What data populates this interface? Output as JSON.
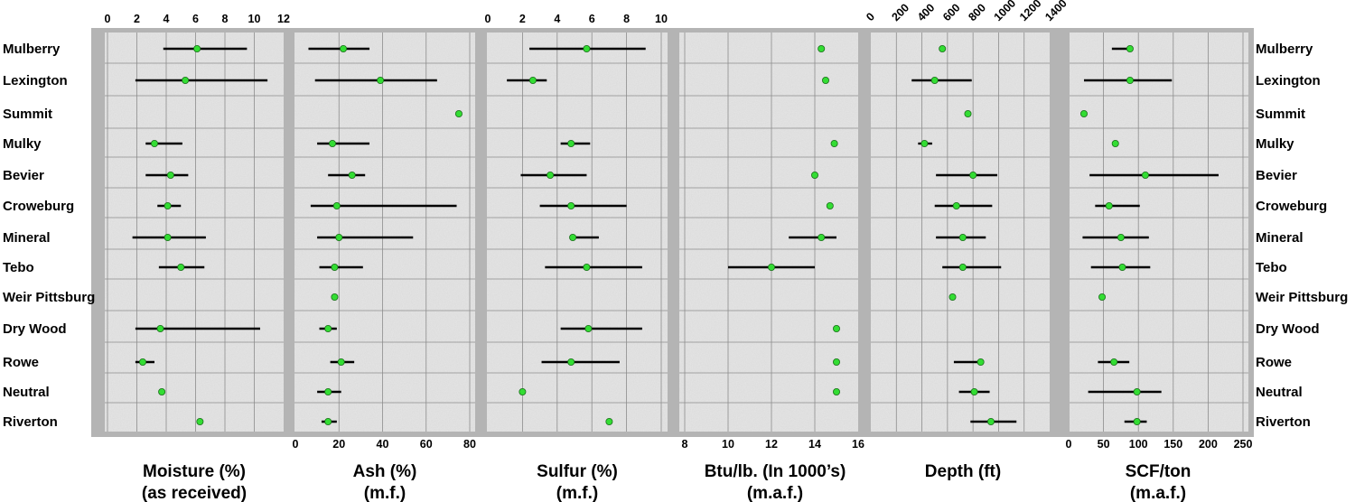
{
  "chart_data": {
    "type": "range-dot",
    "coals": [
      "Mulberry",
      "Lexington",
      "Summit",
      "Mulky",
      "Bevier",
      "Croweburg",
      "Mineral",
      "Tebo",
      "Weir Pittsburg",
      "Dry Wood",
      "Rowe",
      "Neutral",
      "Riverton"
    ],
    "panels": [
      {
        "key": "moisture",
        "title": [
          "Moisture (%)",
          "(as received)"
        ],
        "axis": {
          "min": 0,
          "max": 12,
          "ticks": [
            0,
            2,
            4,
            6,
            8,
            10,
            12
          ],
          "position": "top"
        },
        "mean": [
          6.1,
          5.3,
          null,
          3.2,
          4.3,
          4.1,
          4.1,
          5.0,
          null,
          3.6,
          2.4,
          3.7,
          6.3
        ],
        "min": [
          3.8,
          1.9,
          null,
          2.6,
          2.6,
          3.4,
          1.7,
          3.5,
          null,
          1.9,
          1.9,
          null,
          null
        ],
        "max": [
          9.5,
          10.9,
          null,
          5.1,
          5.5,
          5.0,
          6.7,
          6.6,
          null,
          10.4,
          3.2,
          null,
          null
        ]
      },
      {
        "key": "ash",
        "title": [
          "Ash (%)",
          "(m.f.)"
        ],
        "axis": {
          "min": 0,
          "max": 80,
          "ticks": [
            0,
            20,
            40,
            60,
            80
          ],
          "position": "bottom"
        },
        "mean": [
          22,
          39,
          75,
          17,
          26,
          19,
          20,
          18,
          18,
          15,
          21,
          15,
          15
        ],
        "min": [
          6,
          9,
          null,
          10,
          15,
          7,
          10,
          11,
          null,
          11,
          16,
          10,
          12
        ],
        "max": [
          34,
          65,
          null,
          34,
          32,
          74,
          54,
          31,
          null,
          19,
          27,
          21,
          19
        ]
      },
      {
        "key": "sulfur",
        "title": [
          "Sulfur (%)",
          "(m.f.)"
        ],
        "axis": {
          "min": 0,
          "max": 10,
          "ticks": [
            0,
            2,
            4,
            6,
            8,
            10
          ],
          "position": "top"
        },
        "mean": [
          5.7,
          2.6,
          null,
          4.8,
          3.6,
          4.8,
          4.9,
          5.7,
          null,
          5.8,
          4.8,
          2.0,
          7.0
        ],
        "min": [
          2.4,
          1.1,
          null,
          4.2,
          1.9,
          3.0,
          null,
          3.3,
          null,
          4.2,
          3.1,
          null,
          null
        ],
        "max": [
          9.1,
          3.4,
          null,
          5.9,
          5.7,
          8.0,
          6.4,
          8.9,
          null,
          8.9,
          7.6,
          null,
          null
        ]
      },
      {
        "key": "btu",
        "title": [
          "Btu/lb. (In 1000’s)",
          "(m.a.f.)"
        ],
        "axis": {
          "min": 8,
          "max": 16,
          "ticks": [
            8,
            10,
            12,
            14,
            16
          ],
          "position": "bottom"
        },
        "mean": [
          14.3,
          14.5,
          null,
          14.9,
          14.0,
          14.7,
          14.3,
          12.0,
          null,
          15.0,
          15.0,
          15.0,
          null
        ],
        "min": [
          null,
          null,
          null,
          null,
          null,
          null,
          12.8,
          10.0,
          null,
          null,
          null,
          null,
          null
        ],
        "max": [
          null,
          null,
          null,
          null,
          null,
          null,
          15.0,
          14.0,
          null,
          null,
          null,
          null,
          null
        ]
      },
      {
        "key": "depth",
        "title": [
          "Depth (ft)",
          ""
        ],
        "axis": {
          "min": 0,
          "max": 1400,
          "ticks": [
            0,
            200,
            400,
            600,
            800,
            1000,
            1200,
            1400
          ],
          "position": "top"
        },
        "mean": [
          560,
          500,
          760,
          420,
          800,
          670,
          720,
          720,
          640,
          null,
          860,
          810,
          940
        ],
        "min": [
          540,
          320,
          null,
          370,
          510,
          500,
          510,
          560,
          null,
          null,
          650,
          690,
          780
        ],
        "max": [
          580,
          790,
          null,
          480,
          990,
          950,
          900,
          1020,
          null,
          null,
          null,
          930,
          1140
        ]
      },
      {
        "key": "scf",
        "title": [
          "SCF/ton",
          "(m.a.f.)"
        ],
        "axis": {
          "min": 0,
          "max": 250,
          "ticks": [
            0,
            50,
            100,
            150,
            200,
            250
          ],
          "position": "bottom"
        },
        "mean": [
          88,
          88,
          22,
          67,
          110,
          58,
          75,
          77,
          48,
          null,
          65,
          98,
          98
        ],
        "min": [
          62,
          22,
          null,
          null,
          30,
          38,
          20,
          32,
          null,
          null,
          42,
          28,
          80
        ],
        "max": [
          null,
          148,
          null,
          null,
          215,
          102,
          115,
          117,
          null,
          null,
          87,
          133,
          112
        ]
      }
    ],
    "colors": {
      "point": "#33dd33",
      "range": "#000000",
      "panel_bg": "#e6e6e6",
      "frame": "#b4b4b4"
    }
  }
}
